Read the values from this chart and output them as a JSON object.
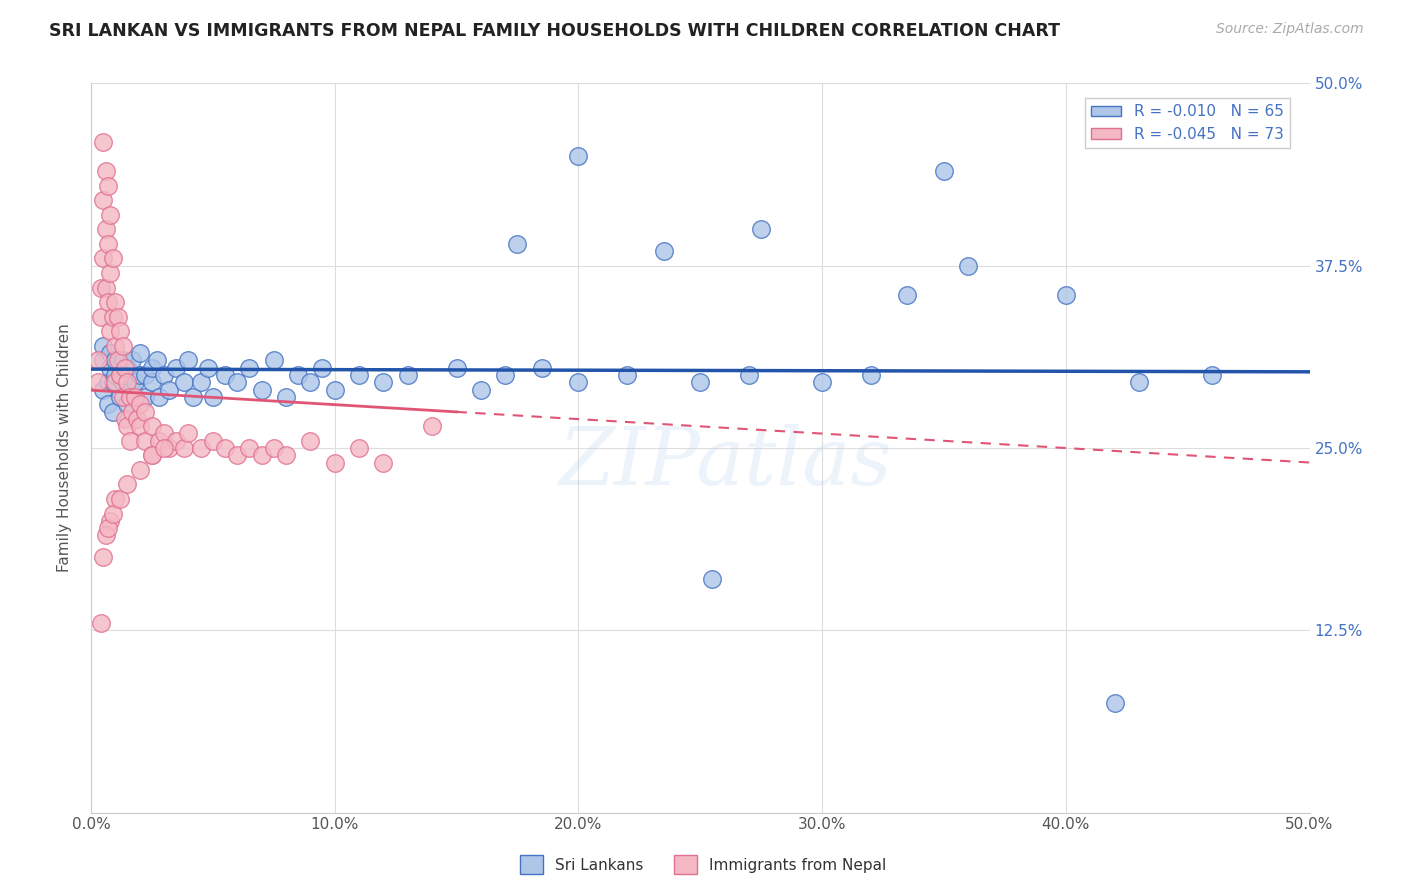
{
  "title": "SRI LANKAN VS IMMIGRANTS FROM NEPAL FAMILY HOUSEHOLDS WITH CHILDREN CORRELATION CHART",
  "source": "Source: ZipAtlas.com",
  "ylabel": "Family Households with Children",
  "xlim": [
    0.0,
    0.5
  ],
  "ylim": [
    0.0,
    0.5
  ],
  "xticks": [
    0.0,
    0.1,
    0.2,
    0.3,
    0.4,
    0.5
  ],
  "yticks": [
    0.0,
    0.125,
    0.25,
    0.375,
    0.5
  ],
  "xticklabels": [
    "0.0%",
    "10.0%",
    "20.0%",
    "30.0%",
    "40.0%",
    "50.0%"
  ],
  "yticklabels_right": [
    "",
    "12.5%",
    "25.0%",
    "37.5%",
    "50.0%"
  ],
  "blue_R": -0.01,
  "blue_N": 65,
  "pink_R": -0.045,
  "pink_N": 73,
  "blue_color": "#aec6e8",
  "blue_edge_color": "#4472c4",
  "blue_line_color": "#2255aa",
  "pink_color": "#f4b8c4",
  "pink_edge_color": "#e07090",
  "pink_line_color": "#e05575",
  "legend_label_blue": "Sri Lankans",
  "legend_label_pink": "Immigrants from Nepal",
  "background_color": "#ffffff",
  "grid_color": "#dddddd",
  "title_color": "#222222",
  "source_color": "#aaaaaa",
  "axis_label_color": "#4472c4",
  "watermark": "ZIPatlas",
  "blue_scatter_x": [
    0.005,
    0.005,
    0.005,
    0.007,
    0.007,
    0.008,
    0.008,
    0.009,
    0.009,
    0.01,
    0.01,
    0.012,
    0.012,
    0.013,
    0.013,
    0.015,
    0.015,
    0.017,
    0.017,
    0.018,
    0.02,
    0.02,
    0.022,
    0.022,
    0.025,
    0.025,
    0.027,
    0.028,
    0.03,
    0.032,
    0.035,
    0.038,
    0.04,
    0.042,
    0.045,
    0.048,
    0.05,
    0.055,
    0.06,
    0.065,
    0.07,
    0.075,
    0.08,
    0.085,
    0.09,
    0.095,
    0.1,
    0.11,
    0.12,
    0.13,
    0.15,
    0.16,
    0.17,
    0.185,
    0.2,
    0.22,
    0.25,
    0.27,
    0.3,
    0.32,
    0.36,
    0.4,
    0.43,
    0.46,
    0.35
  ],
  "blue_scatter_y": [
    0.29,
    0.31,
    0.32,
    0.28,
    0.295,
    0.305,
    0.315,
    0.275,
    0.295,
    0.3,
    0.31,
    0.285,
    0.3,
    0.295,
    0.31,
    0.28,
    0.305,
    0.29,
    0.31,
    0.295,
    0.3,
    0.315,
    0.285,
    0.3,
    0.295,
    0.305,
    0.31,
    0.285,
    0.3,
    0.29,
    0.305,
    0.295,
    0.31,
    0.285,
    0.295,
    0.305,
    0.285,
    0.3,
    0.295,
    0.305,
    0.29,
    0.31,
    0.285,
    0.3,
    0.295,
    0.305,
    0.29,
    0.3,
    0.295,
    0.3,
    0.305,
    0.29,
    0.3,
    0.305,
    0.295,
    0.3,
    0.295,
    0.3,
    0.295,
    0.3,
    0.375,
    0.355,
    0.295,
    0.3,
    0.44
  ],
  "blue_scatter_outliers_x": [
    0.175,
    0.235,
    0.275,
    0.335,
    0.42,
    0.2,
    0.255
  ],
  "blue_scatter_outliers_y": [
    0.39,
    0.385,
    0.4,
    0.355,
    0.075,
    0.45,
    0.16
  ],
  "pink_scatter_x": [
    0.003,
    0.003,
    0.004,
    0.004,
    0.005,
    0.005,
    0.005,
    0.006,
    0.006,
    0.006,
    0.007,
    0.007,
    0.007,
    0.008,
    0.008,
    0.008,
    0.009,
    0.009,
    0.01,
    0.01,
    0.01,
    0.011,
    0.011,
    0.012,
    0.012,
    0.013,
    0.013,
    0.014,
    0.014,
    0.015,
    0.015,
    0.016,
    0.016,
    0.017,
    0.018,
    0.019,
    0.02,
    0.02,
    0.022,
    0.022,
    0.025,
    0.025,
    0.028,
    0.03,
    0.032,
    0.035,
    0.038,
    0.04,
    0.045,
    0.05,
    0.055,
    0.06,
    0.065,
    0.07,
    0.075,
    0.08,
    0.09,
    0.1,
    0.11,
    0.12,
    0.14,
    0.01,
    0.008,
    0.006,
    0.005,
    0.007,
    0.009,
    0.012,
    0.015,
    0.02,
    0.025,
    0.03,
    0.004
  ],
  "pink_scatter_y": [
    0.31,
    0.295,
    0.36,
    0.34,
    0.46,
    0.42,
    0.38,
    0.44,
    0.4,
    0.36,
    0.43,
    0.39,
    0.35,
    0.41,
    0.37,
    0.33,
    0.38,
    0.34,
    0.35,
    0.32,
    0.295,
    0.34,
    0.31,
    0.33,
    0.3,
    0.32,
    0.285,
    0.305,
    0.27,
    0.295,
    0.265,
    0.285,
    0.255,
    0.275,
    0.285,
    0.27,
    0.28,
    0.265,
    0.275,
    0.255,
    0.265,
    0.245,
    0.255,
    0.26,
    0.25,
    0.255,
    0.25,
    0.26,
    0.25,
    0.255,
    0.25,
    0.245,
    0.25,
    0.245,
    0.25,
    0.245,
    0.255,
    0.24,
    0.25,
    0.24,
    0.265,
    0.215,
    0.2,
    0.19,
    0.175,
    0.195,
    0.205,
    0.215,
    0.225,
    0.235,
    0.245,
    0.25,
    0.13
  ]
}
